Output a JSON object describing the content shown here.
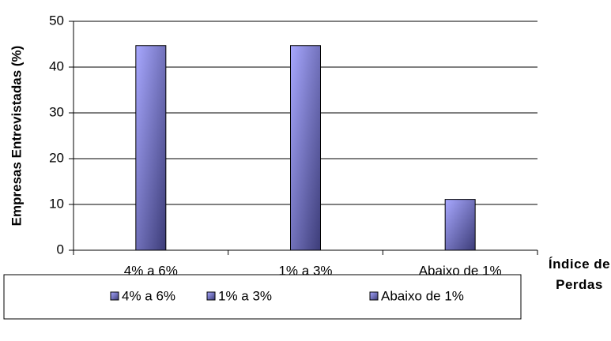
{
  "chart_data": {
    "type": "bar",
    "y_label": "Empresas Entrevistadas (%)",
    "x_label": "Índice de Perdas",
    "categories": [
      "4% a 6%",
      "1% a 3%",
      "Abaixo de 1%"
    ],
    "values": [
      44.7,
      44.7,
      11.1
    ],
    "color": "#7f7fd0",
    "ylim": [
      0,
      50
    ],
    "yticks": [
      0,
      10,
      20,
      30,
      40,
      50
    ],
    "grid": true,
    "legend": "bottom"
  }
}
